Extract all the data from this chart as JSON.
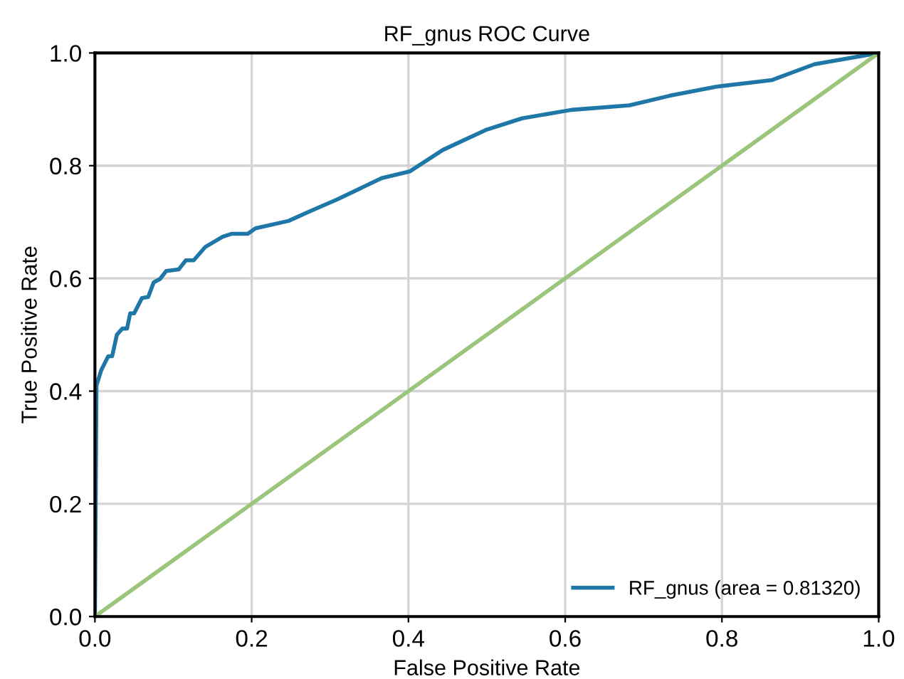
{
  "chart_data": {
    "type": "line",
    "title": "RF_gnus ROC Curve",
    "xlabel": "False Positive Rate",
    "ylabel": "True Positive Rate",
    "series": [
      {
        "name": "RF_gnus (area = 0.81320)",
        "color": "#1f77a8",
        "x": [
          0,
          0.002,
          0.008,
          0.017,
          0.022,
          0.028,
          0.035,
          0.041,
          0.045,
          0.05,
          0.06,
          0.068,
          0.075,
          0.083,
          0.091,
          0.107,
          0.116,
          0.126,
          0.141,
          0.163,
          0.174,
          0.195,
          0.205,
          0.247,
          0.274,
          0.309,
          0.366,
          0.402,
          0.444,
          0.5,
          0.545,
          0.608,
          0.682,
          0.733,
          0.792,
          0.864,
          0.918,
          1.0
        ],
        "values": [
          0,
          0.41,
          0.437,
          0.462,
          0.462,
          0.5,
          0.511,
          0.511,
          0.538,
          0.538,
          0.565,
          0.567,
          0.593,
          0.599,
          0.613,
          0.616,
          0.632,
          0.632,
          0.656,
          0.674,
          0.679,
          0.679,
          0.689,
          0.702,
          0.719,
          0.74,
          0.778,
          0.79,
          0.828,
          0.864,
          0.884,
          0.899,
          0.907,
          0.924,
          0.94,
          0.952,
          0.98,
          1.0
        ]
      },
      {
        "color": "#9bc57a",
        "x": [
          0,
          1
        ],
        "values": [
          0,
          1
        ]
      }
    ],
    "xlim": [
      0,
      1
    ],
    "ylim": [
      0,
      1
    ],
    "xticks": [
      {
        "value": 0,
        "label": "0.0"
      },
      0.2,
      0.4,
      0.6,
      0.8,
      {
        "value": 1,
        "label": "1.0"
      }
    ],
    "yticks": [
      {
        "value": 0,
        "label": "0.0"
      },
      0.2,
      0.4,
      0.6,
      0.8,
      {
        "value": 1,
        "label": "1.0"
      }
    ],
    "grid": true,
    "legend": "bottom right",
    "marker": "none",
    "line_style": "solid"
  }
}
